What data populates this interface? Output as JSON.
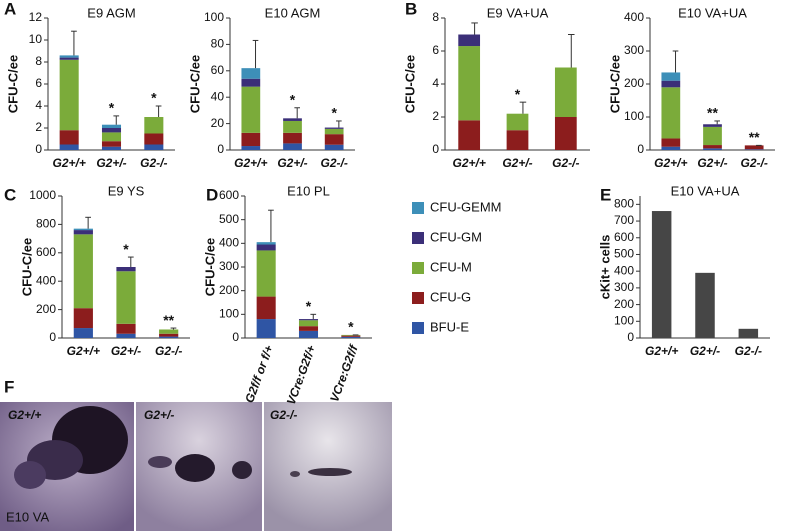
{
  "chart_data": [
    {
      "type": "stacked_bar",
      "panel": "A",
      "title": "E9 AGM",
      "ylabel": "CFU-C/ee",
      "categories": [
        "G2+/+",
        "G2+/-",
        "G2-/-"
      ],
      "ylim": [
        0,
        12
      ],
      "yticks": [
        0,
        2,
        4,
        6,
        8,
        10,
        12
      ],
      "series": [
        {
          "name": "BFU-E",
          "color": "#2f55a4",
          "values": [
            0.5,
            0.3,
            0.5
          ]
        },
        {
          "name": "CFU-G",
          "color": "#8c1d1d",
          "values": [
            1.3,
            0.5,
            1.0
          ]
        },
        {
          "name": "CFU-M",
          "color": "#7bab3a",
          "values": [
            6.4,
            0.8,
            1.5
          ]
        },
        {
          "name": "CFU-GM",
          "color": "#3b2f78",
          "values": [
            0.2,
            0.4,
            0
          ]
        },
        {
          "name": "CFU-GEMM",
          "color": "#3d8fb8",
          "values": [
            0.2,
            0.3,
            0
          ]
        }
      ],
      "errors": [
        2.2,
        0.8,
        1.0
      ],
      "annotations": [
        null,
        "*",
        "*"
      ]
    },
    {
      "type": "stacked_bar",
      "title": "E10 AGM",
      "ylabel": "CFU-C/ee",
      "categories": [
        "G2+/+",
        "G2+/-",
        "G2-/-"
      ],
      "ylim": [
        0,
        100
      ],
      "yticks": [
        0,
        20,
        40,
        60,
        80,
        100
      ],
      "series": [
        {
          "name": "BFU-E",
          "color": "#2f55a4",
          "values": [
            3,
            5,
            4
          ]
        },
        {
          "name": "CFU-G",
          "color": "#8c1d1d",
          "values": [
            10,
            8,
            8
          ]
        },
        {
          "name": "CFU-M",
          "color": "#7bab3a",
          "values": [
            35,
            9,
            4
          ]
        },
        {
          "name": "CFU-GM",
          "color": "#3b2f78",
          "values": [
            6,
            2,
            1
          ]
        },
        {
          "name": "CFU-GEMM",
          "color": "#3d8fb8",
          "values": [
            8,
            0,
            0
          ]
        }
      ],
      "errors": [
        21,
        8,
        5
      ],
      "annotations": [
        null,
        "*",
        "*"
      ]
    },
    {
      "type": "stacked_bar",
      "panel": "B",
      "title": "E9 VA+UA",
      "ylabel": "CFU-C/ee",
      "categories": [
        "G2+/+",
        "G2+/-",
        "G2-/-"
      ],
      "ylim": [
        0,
        8
      ],
      "yticks": [
        0,
        2,
        4,
        6,
        8
      ],
      "series": [
        {
          "name": "BFU-E",
          "color": "#2f55a4",
          "values": [
            0,
            0,
            0
          ]
        },
        {
          "name": "CFU-G",
          "color": "#8c1d1d",
          "values": [
            1.8,
            1.2,
            2.0
          ]
        },
        {
          "name": "CFU-M",
          "color": "#7bab3a",
          "values": [
            4.5,
            1.0,
            3.0
          ]
        },
        {
          "name": "CFU-GM",
          "color": "#3b2f78",
          "values": [
            0.7,
            0,
            0
          ]
        },
        {
          "name": "CFU-GEMM",
          "color": "#3d8fb8",
          "values": [
            0,
            0,
            0
          ]
        }
      ],
      "errors": [
        0.7,
        0.7,
        2.0
      ],
      "annotations": [
        null,
        "*",
        null
      ]
    },
    {
      "type": "stacked_bar",
      "title": "E10 VA+UA",
      "ylabel": "CFU-C/ee",
      "categories": [
        "G2+/+",
        "G2+/-",
        "G2-/-"
      ],
      "ylim": [
        0,
        400
      ],
      "yticks": [
        0,
        100,
        200,
        300,
        400
      ],
      "series": [
        {
          "name": "BFU-E",
          "color": "#2f55a4",
          "values": [
            10,
            5,
            2
          ]
        },
        {
          "name": "CFU-G",
          "color": "#8c1d1d",
          "values": [
            25,
            10,
            12
          ]
        },
        {
          "name": "CFU-M",
          "color": "#7bab3a",
          "values": [
            155,
            55,
            0
          ]
        },
        {
          "name": "CFU-GM",
          "color": "#3b2f78",
          "values": [
            20,
            8,
            0
          ]
        },
        {
          "name": "CFU-GEMM",
          "color": "#3d8fb8",
          "values": [
            25,
            0,
            0
          ]
        }
      ],
      "errors": [
        65,
        10,
        0
      ],
      "annotations": [
        null,
        "**",
        "**"
      ]
    },
    {
      "type": "stacked_bar",
      "panel": "C",
      "title": "E9 YS",
      "ylabel": "CFU-C/ee",
      "categories": [
        "G2+/+",
        "G2+/-",
        "G2-/-"
      ],
      "ylim": [
        0,
        1000
      ],
      "yticks": [
        0,
        200,
        400,
        600,
        800,
        1000
      ],
      "series": [
        {
          "name": "BFU-E",
          "color": "#2f55a4",
          "values": [
            70,
            30,
            10
          ]
        },
        {
          "name": "CFU-G",
          "color": "#8c1d1d",
          "values": [
            140,
            70,
            20
          ]
        },
        {
          "name": "CFU-M",
          "color": "#7bab3a",
          "values": [
            520,
            370,
            30
          ]
        },
        {
          "name": "CFU-GM",
          "color": "#3b2f78",
          "values": [
            30,
            30,
            0
          ]
        },
        {
          "name": "CFU-GEMM",
          "color": "#3d8fb8",
          "values": [
            10,
            0,
            0
          ]
        }
      ],
      "errors": [
        80,
        70,
        10
      ],
      "annotations": [
        null,
        "*",
        "**"
      ]
    },
    {
      "type": "stacked_bar",
      "panel": "D",
      "title": "E10 PL",
      "ylabel": "CFU-C/ee",
      "rotate_labels": true,
      "categories": [
        "G2f/f or f/+",
        "VCre:G2f/+",
        "VCre:G2f/f"
      ],
      "ylim": [
        0,
        600
      ],
      "yticks": [
        0,
        100,
        200,
        300,
        400,
        500,
        600
      ],
      "series": [
        {
          "name": "BFU-E",
          "color": "#2f55a4",
          "values": [
            80,
            30,
            5
          ]
        },
        {
          "name": "CFU-G",
          "color": "#8c1d1d",
          "values": [
            95,
            20,
            5
          ]
        },
        {
          "name": "CFU-M",
          "color": "#7bab3a",
          "values": [
            195,
            25,
            3
          ]
        },
        {
          "name": "CFU-GM",
          "color": "#3b2f78",
          "values": [
            25,
            5,
            0
          ]
        },
        {
          "name": "CFU-GEMM",
          "color": "#3d8fb8",
          "values": [
            10,
            0,
            0
          ]
        }
      ],
      "errors": [
        135,
        20,
        0
      ],
      "annotations": [
        null,
        "*",
        "*"
      ]
    },
    {
      "type": "bar",
      "panel": "E",
      "title": "E10 VA+UA",
      "ylabel": "cKit+ cells",
      "color": "#464646",
      "categories": [
        "G2+/+",
        "G2+/-",
        "G2-/-"
      ],
      "ylim": [
        0,
        850
      ],
      "yticks": [
        0,
        100,
        200,
        300,
        400,
        500,
        600,
        700,
        800
      ],
      "values": [
        760,
        390,
        55
      ]
    }
  ],
  "figure_f": {
    "panel": "F",
    "images": [
      "G2+/+",
      "G2+/-",
      "G2-/-"
    ],
    "caption": "E10 VA"
  }
}
